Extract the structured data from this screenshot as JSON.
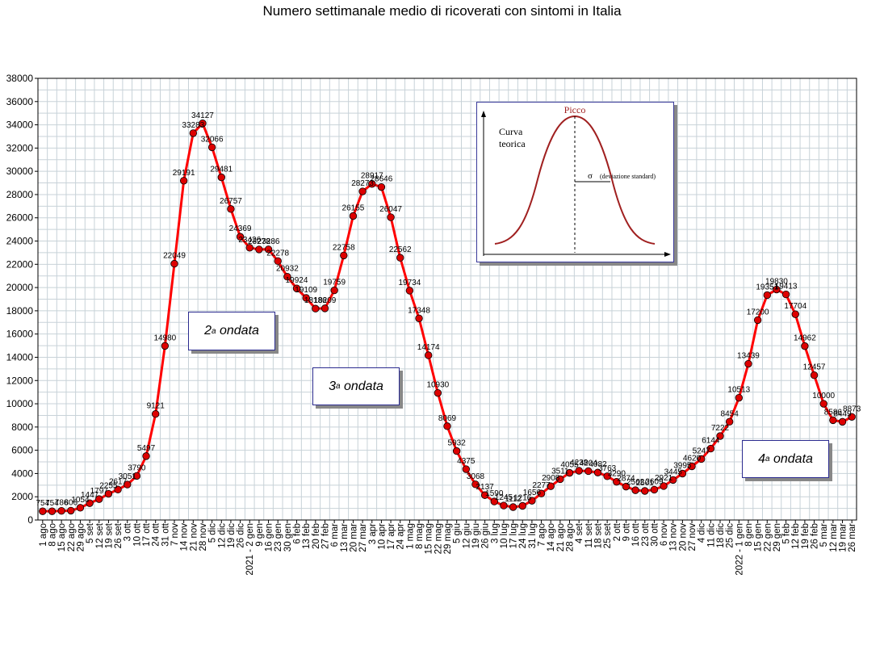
{
  "chart_data": {
    "type": "line",
    "title": "Numero settimanale medio di ricoverati con sintomi in Italia",
    "xlabel": "",
    "ylabel": "",
    "ylim": [
      0,
      38000
    ],
    "yticks": [
      0,
      2000,
      4000,
      6000,
      8000,
      10000,
      12000,
      14000,
      16000,
      18000,
      20000,
      22000,
      24000,
      26000,
      28000,
      30000,
      32000,
      34000,
      36000,
      38000
    ],
    "grid": true,
    "line_color": "#ff0000",
    "marker_color": "#dd0000",
    "xtick_labels": [
      "1 ago",
      "8 ago",
      "15 ago",
      "22 ago",
      "29 ago",
      "5 set",
      "12 set",
      "19 set",
      "26 set",
      "3 ott",
      "10 ott",
      "17 ott",
      "24 ott",
      "31 ott",
      "7 nov",
      "14 nov",
      "21 nov",
      "28 nov",
      "5 dic",
      "12 dic",
      "19 dic",
      "26 dic",
      "2021 - 2 gen",
      "9 gen",
      "16 gen",
      "23 gen",
      "30 gen",
      "6 feb",
      "13 feb",
      "20 feb",
      "27 feb",
      "6 mar",
      "13 mar",
      "20 mar",
      "27 mar",
      "3 apr",
      "10 apr",
      "17 apr",
      "24 apr",
      "1 mag",
      "8 mag",
      "15 mag",
      "22 mag",
      "29 mag",
      "5 giu",
      "12 giu",
      "19 giu",
      "26 giu",
      "3 lug",
      "10 lug",
      "17 lug",
      "24 lug",
      "31 lug",
      "7 ago",
      "14 ago",
      "21 ago",
      "28 ago",
      "4 set",
      "11 set",
      "18 set",
      "25 set",
      "2 ott",
      "9 ott",
      "16 ott",
      "23 ott",
      "30 ott",
      "6 nov",
      "13 nov",
      "20 nov",
      "27 nov",
      "4 dic",
      "11 dic",
      "18 dic",
      "25 dic",
      "2022 - 1 gen",
      "8 gen",
      "15 gen",
      "22 gen",
      "29 gen",
      "5 feb",
      "12 feb",
      "19 feb",
      "26 feb",
      "5 mar",
      "12 mar",
      "19 mar",
      "26 mar"
    ],
    "series": [
      {
        "values": [
          754,
          754,
          786,
          806,
          1054,
          1447,
          1797,
          2255,
          2617,
          3051,
          3790,
          5497,
          9121,
          14980,
          22049,
          29191,
          33283,
          34127,
          32066,
          29481,
          26757,
          24369,
          23426,
          23278,
          23286,
          22278,
          20932,
          19924,
          19109,
          18186,
          18209,
          19759,
          22758,
          26155,
          28273,
          28917,
          28646,
          26047,
          22562,
          19734,
          17348,
          14174,
          10930,
          8069,
          5932,
          4375,
          3068,
          2137,
          1590,
          1245,
          1112,
          1216,
          1656,
          2277,
          2908,
          3511,
          4055,
          4238,
          4204,
          4082,
          3763,
          3290,
          2874,
          2562,
          2501,
          2609,
          2921,
          3445,
          3995,
          4620,
          5247,
          6144,
          7222,
          8454,
          10513,
          13439,
          17200,
          19351,
          19830,
          19413,
          17704,
          14962,
          12457,
          10000,
          8586,
          8449,
          8873
        ],
        "labels": [
          "754",
          "754",
          "786",
          "806",
          "1054",
          "1447",
          "1797",
          "2255",
          "2617",
          "3051",
          "3790",
          "5497",
          "9121",
          "14980",
          "22049",
          "29191",
          "33283",
          "34127",
          "32066",
          "29481",
          "26757",
          "24369",
          "23426",
          "23278",
          "23286",
          "22278",
          "20932",
          "19924",
          "19109",
          "18186",
          "18209",
          "19759",
          "22758",
          "26155",
          "28273",
          "28917",
          "28646",
          "26047",
          "22562",
          "19734",
          "17348",
          "14174",
          "10930",
          "8069",
          "5932",
          "4375",
          "3068",
          "2137",
          "1590",
          "1245",
          "1112",
          "1216",
          "1656",
          "2277",
          "2908",
          "3511",
          "4055",
          "4238",
          "4204",
          "4082",
          "3763",
          "3290",
          "2874",
          "2562",
          "2501",
          "2609",
          "2921",
          "3445",
          "3995",
          "4620",
          "5247",
          "6144",
          "7222",
          "8454",
          "10513",
          "13439",
          "17200",
          "19351",
          "19830",
          "19413",
          "17704",
          "14962",
          "12457",
          "10000",
          "8586",
          "8449",
          "8873"
        ]
      }
    ]
  },
  "annotations": {
    "wave2": {
      "ord": "2",
      "sup": "a",
      "text": "ondata"
    },
    "wave3": {
      "ord": "3",
      "sup": "a",
      "text": "ondata"
    },
    "wave4": {
      "ord": "4",
      "sup": "a",
      "text": "ondata"
    }
  },
  "inset": {
    "peak_label": "Picco",
    "curve_label_1": "Curva",
    "curve_label_2": "teorica",
    "sigma_symbol": "σ",
    "sigma_text": "(deviazione standard)"
  }
}
